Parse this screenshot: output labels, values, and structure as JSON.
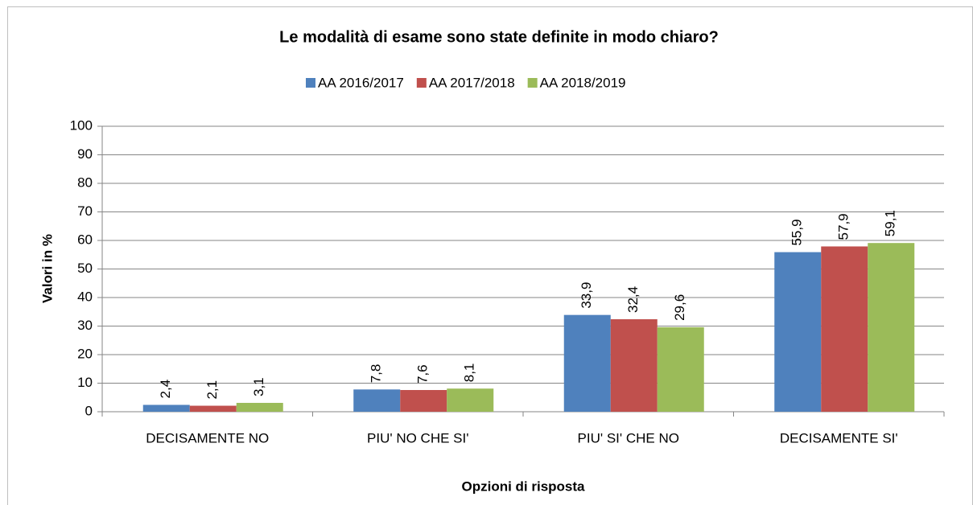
{
  "chart_data": {
    "type": "bar",
    "title": "Le modalità di esame sono state definite in modo chiaro?",
    "y_label": "Valori in %",
    "x_label": "Opzioni di risposta",
    "categories": [
      "DECISAMENTE NO",
      "PIU' NO CHE SI'",
      "PIU' SI' CHE NO",
      "DECISAMENTE SI'"
    ],
    "series": [
      {
        "name": "AA 2016/2017",
        "color": "#4f81bd",
        "values": [
          2.4,
          7.8,
          33.9,
          55.9
        ],
        "value_labels": [
          "2,4",
          "7,8",
          "33,9",
          "55,9"
        ]
      },
      {
        "name": "AA 2017/2018",
        "color": "#c0504d",
        "values": [
          2.1,
          7.6,
          32.4,
          57.9
        ],
        "value_labels": [
          "2,1",
          "7,6",
          "32,4",
          "57,9"
        ]
      },
      {
        "name": "AA 2018/2019",
        "color": "#9bbb59",
        "values": [
          3.1,
          8.1,
          29.6,
          59.1
        ],
        "value_labels": [
          "3,1",
          "8,1",
          "29,6",
          "59,1"
        ]
      }
    ],
    "ylim": [
      0,
      100
    ],
    "yticks": [
      0,
      10,
      20,
      30,
      40,
      50,
      60,
      70,
      80,
      90,
      100
    ],
    "grid": true,
    "legend": "top"
  }
}
